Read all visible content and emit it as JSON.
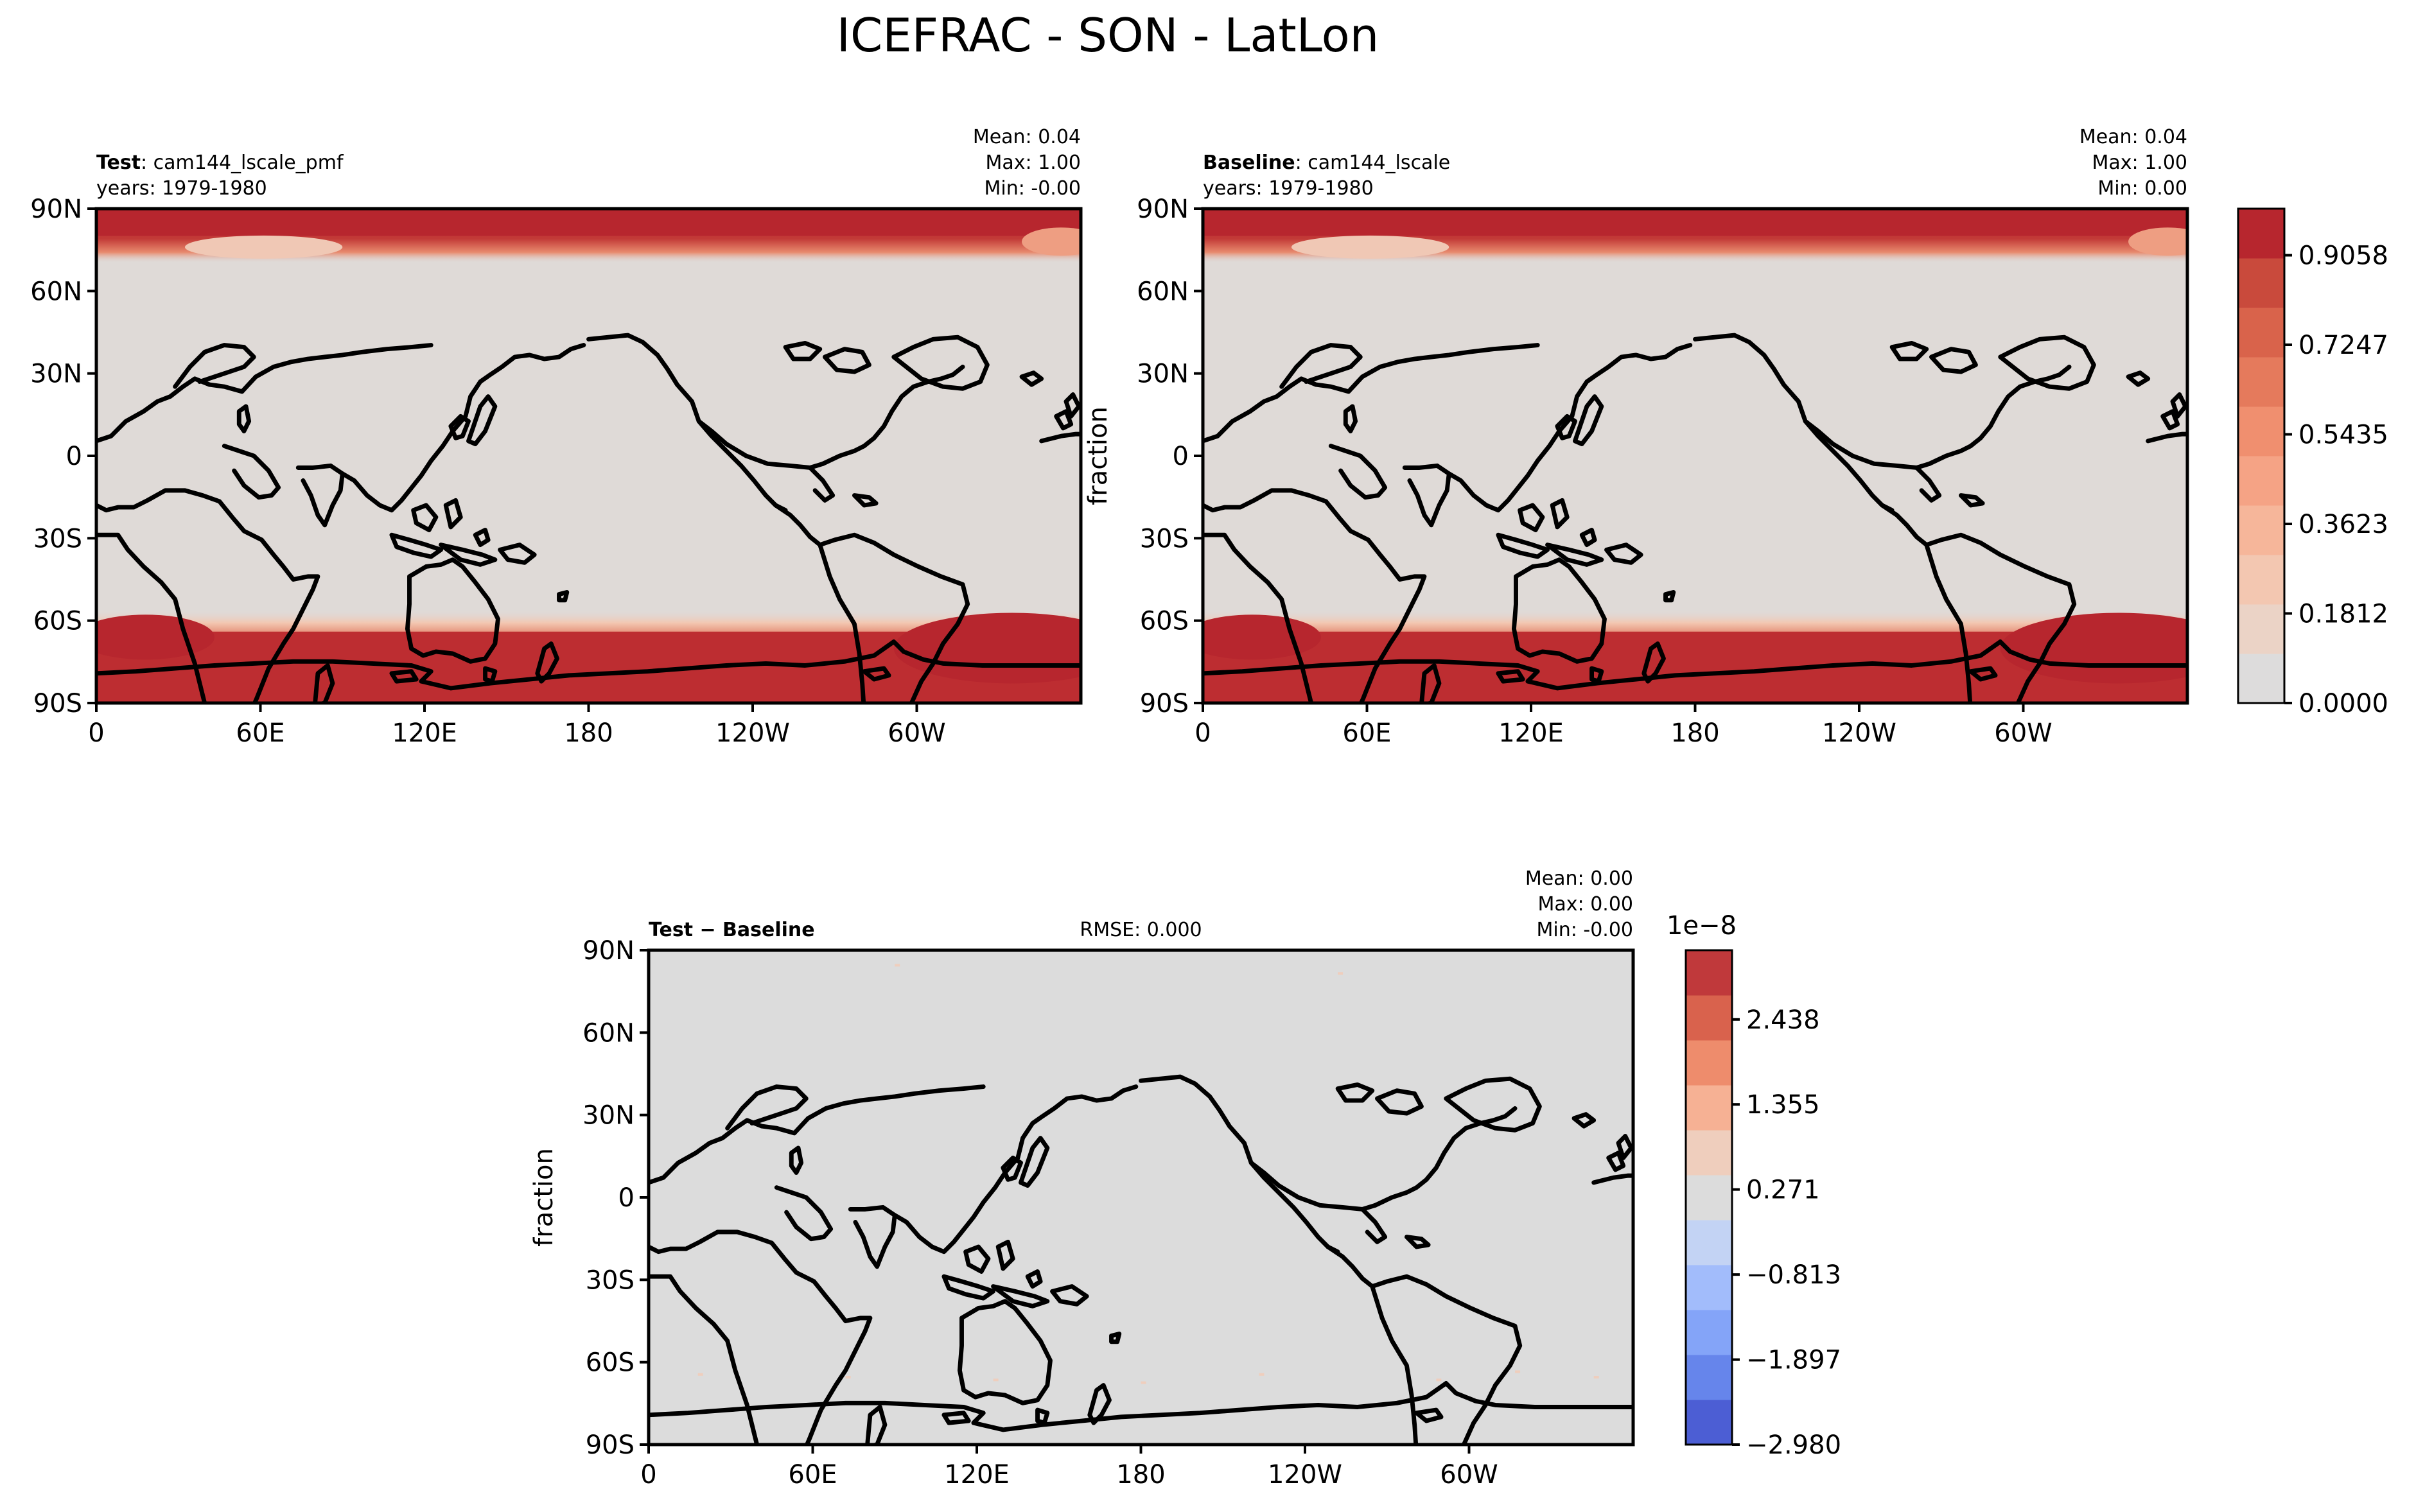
{
  "figure_title": "ICEFRAC - SON - LatLon",
  "chart_data": [
    {
      "type": "heatmap",
      "id": "test",
      "label_bold": "Test",
      "label_rest": ": cam144_lscale_pmf",
      "years": "years: 1979-1980",
      "stats": [
        "Mean:  0.04",
        "Max:  1.00",
        "Min: -0.00"
      ],
      "ylabel": "",
      "xticks": [
        "0",
        "60E",
        "120E",
        "180",
        "120W",
        "60W"
      ],
      "yticks": [
        "90N",
        "60N",
        "30N",
        "0",
        "30S",
        "60S",
        "90S"
      ],
      "xlim": [
        0,
        360
      ],
      "ylim": [
        -90,
        90
      ],
      "ice_bands": {
        "north_edge_lat": 72,
        "south_edge_lat": -60,
        "weddell_edge_lat": -58
      }
    },
    {
      "type": "heatmap",
      "id": "baseline",
      "label_bold": "Baseline",
      "label_rest": ": cam144_lscale",
      "years": "years: 1979-1980",
      "stats": [
        "Mean:  0.04",
        "Max:  1.00",
        "Min:  0.00"
      ],
      "ylabel": "fraction",
      "xticks": [
        "0",
        "60E",
        "120E",
        "180",
        "120W",
        "60W"
      ],
      "yticks": [
        "90N",
        "60N",
        "30N",
        "0",
        "30S",
        "60S",
        "90S"
      ],
      "xlim": [
        0,
        360
      ],
      "ylim": [
        -90,
        90
      ]
    },
    {
      "type": "heatmap",
      "id": "diff",
      "label_bold": "Test − Baseline",
      "rmse": "RMSE: 0.000",
      "stats": [
        "Mean:  0.00",
        "Max:  0.00",
        "Min: -0.00"
      ],
      "ylabel": "fraction",
      "xticks": [
        "0",
        "60E",
        "120E",
        "180",
        "120W",
        "60W"
      ],
      "yticks": [
        "90N",
        "60N",
        "30N",
        "0",
        "30S",
        "60S",
        "90S"
      ],
      "xlim": [
        0,
        360
      ],
      "ylim": [
        -90,
        90
      ]
    }
  ],
  "colorbars": {
    "main": {
      "colors": [
        "#dddcdc",
        "#ebd3c6",
        "#f3c7b1",
        "#f6b69a",
        "#f5a385",
        "#f08f6f",
        "#e57a5c",
        "#d9634b",
        "#c94a3c",
        "#b7262e"
      ],
      "ticks": [
        "0.0000",
        "0.1812",
        "0.3623",
        "0.5435",
        "0.7247",
        "0.9058"
      ],
      "tick_values": [
        0,
        0.1812,
        0.3623,
        0.5435,
        0.7247,
        0.9058
      ],
      "range": [
        0,
        1.0
      ]
    },
    "diff": {
      "exponent": "1e−8",
      "colors": [
        "#4c5ed4",
        "#6685eb",
        "#84a4f8",
        "#a2bcfb",
        "#c3d3f4",
        "#dcdcdc",
        "#efcebd",
        "#f6b194",
        "#ee8c6c",
        "#d9624d",
        "#c0393b"
      ],
      "ticks": [
        "−2.980",
        "−1.897",
        "−0.813",
        "0.271",
        "1.355",
        "2.438"
      ],
      "tick_values": [
        -2.98,
        -1.897,
        -0.813,
        0.271,
        1.355,
        2.438
      ],
      "range": [
        -2.98,
        3.32
      ]
    }
  }
}
